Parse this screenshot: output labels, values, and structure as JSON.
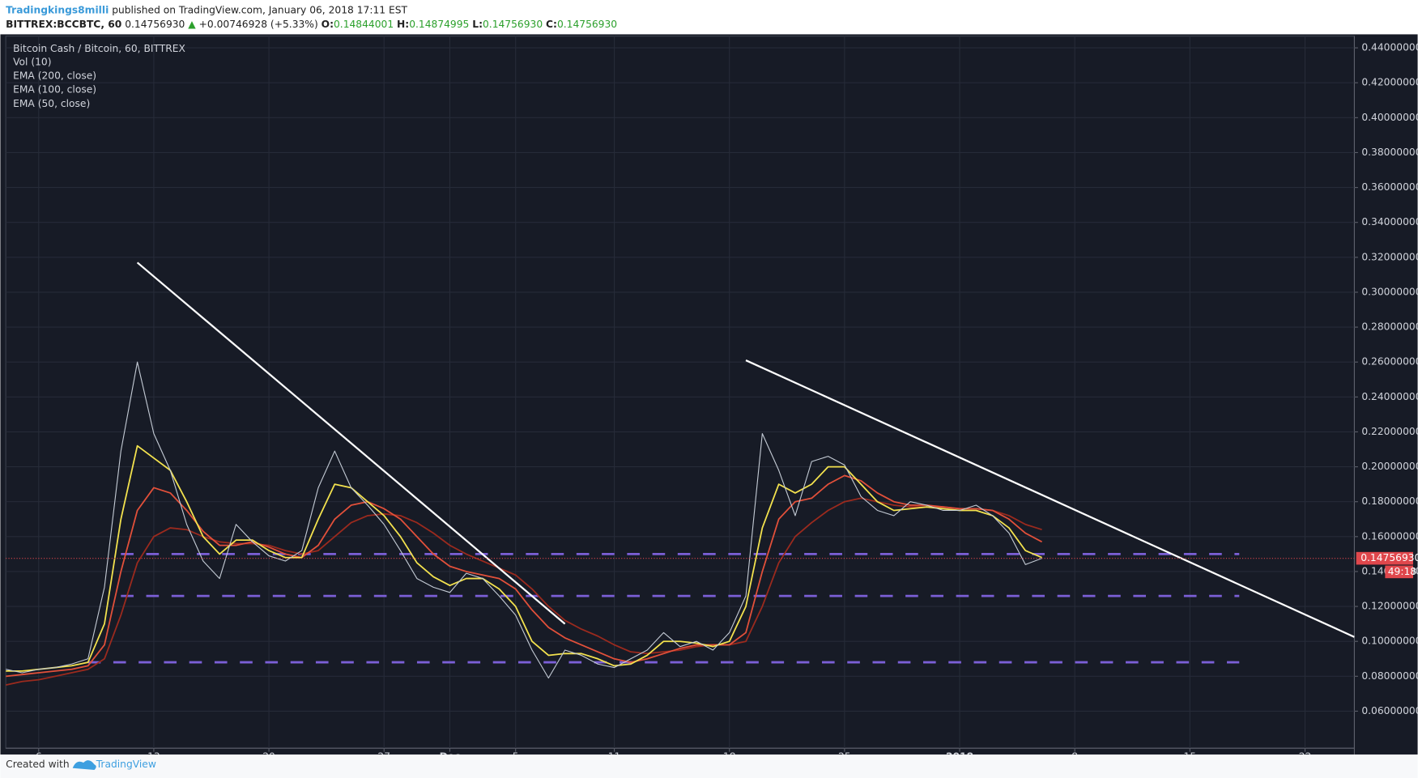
{
  "header": {
    "author": "Tradingkings8milli",
    "published": "published on TradingView.com, January 06, 2018 17:11 EST",
    "symbol": "BITTREX:BCCBTC, 60",
    "price": "0.14756930",
    "arrow": "▲",
    "change": "+0.00746928 (+5.33%)",
    "open_label": "O:",
    "open": "0.14844001",
    "high_label": "H:",
    "high": "0.14874995",
    "low_label": "L:",
    "low": "0.14756930",
    "close_label": "C:",
    "close": "0.14756930"
  },
  "chart_data": {
    "type": "line",
    "title": "Bitcoin Cash / Bitcoin, 60, BITTREX",
    "volume_label": "Vol (10)",
    "x": [
      "2017-11-04",
      "2017-11-05",
      "2017-11-06",
      "2017-11-07",
      "2017-11-08",
      "2017-11-09",
      "2017-11-10",
      "2017-11-11",
      "2017-11-12",
      "2017-11-13",
      "2017-11-14",
      "2017-11-15",
      "2017-11-16",
      "2017-11-17",
      "2017-11-18",
      "2017-11-19",
      "2017-11-20",
      "2017-11-21",
      "2017-11-22",
      "2017-11-23",
      "2017-11-24",
      "2017-11-25",
      "2017-11-26",
      "2017-11-27",
      "2017-11-28",
      "2017-11-29",
      "2017-11-30",
      "2017-12-01",
      "2017-12-02",
      "2017-12-03",
      "2017-12-04",
      "2017-12-05",
      "2017-12-06",
      "2017-12-07",
      "2017-12-08",
      "2017-12-09",
      "2017-12-10",
      "2017-12-11",
      "2017-12-12",
      "2017-12-13",
      "2017-12-14",
      "2017-12-15",
      "2017-12-16",
      "2017-12-17",
      "2017-12-18",
      "2017-12-19",
      "2017-12-20",
      "2017-12-21",
      "2017-12-22",
      "2017-12-23",
      "2017-12-24",
      "2017-12-25",
      "2017-12-26",
      "2017-12-27",
      "2017-12-28",
      "2017-12-29",
      "2017-12-30",
      "2017-12-31",
      "2018-01-01",
      "2018-01-02",
      "2018-01-03",
      "2018-01-04",
      "2018-01-05",
      "2018-01-06"
    ],
    "values": [
      0.084,
      0.082,
      0.084,
      0.085,
      0.087,
      0.09,
      0.131,
      0.209,
      0.26,
      0.219,
      0.198,
      0.167,
      0.146,
      0.136,
      0.167,
      0.157,
      0.149,
      0.146,
      0.152,
      0.188,
      0.209,
      0.188,
      0.178,
      0.167,
      0.152,
      0.136,
      0.131,
      0.128,
      0.139,
      0.136,
      0.126,
      0.115,
      0.095,
      0.079,
      0.095,
      0.092,
      0.087,
      0.085,
      0.09,
      0.095,
      0.105,
      0.097,
      0.1,
      0.095,
      0.105,
      0.126,
      0.219,
      0.198,
      0.172,
      0.203,
      0.206,
      0.201,
      0.183,
      0.175,
      0.172,
      0.18,
      0.178,
      0.175,
      0.175,
      0.178,
      0.172,
      0.162,
      0.144,
      0.1475693
    ],
    "color": "#c3cad4",
    "series": [
      {
        "name": "EMA (200, close)",
        "color": "#9b2a1e",
        "values": [
          0.075,
          0.077,
          0.078,
          0.08,
          0.082,
          0.084,
          0.09,
          0.115,
          0.145,
          0.16,
          0.165,
          0.164,
          0.16,
          0.157,
          0.156,
          0.156,
          0.155,
          0.152,
          0.15,
          0.152,
          0.16,
          0.168,
          0.172,
          0.173,
          0.172,
          0.168,
          0.162,
          0.155,
          0.15,
          0.146,
          0.142,
          0.138,
          0.13,
          0.12,
          0.112,
          0.107,
          0.103,
          0.098,
          0.094,
          0.093,
          0.094,
          0.095,
          0.097,
          0.098,
          0.098,
          0.1,
          0.12,
          0.145,
          0.16,
          0.168,
          0.175,
          0.18,
          0.182,
          0.18,
          0.178,
          0.177,
          0.177,
          0.177,
          0.176,
          0.176,
          0.175,
          0.172,
          0.167,
          0.164
        ]
      },
      {
        "name": "EMA (100, close)",
        "color": "#e2503a",
        "values": [
          0.08,
          0.081,
          0.082,
          0.083,
          0.084,
          0.086,
          0.098,
          0.14,
          0.175,
          0.188,
          0.185,
          0.175,
          0.163,
          0.155,
          0.155,
          0.157,
          0.154,
          0.15,
          0.148,
          0.155,
          0.17,
          0.178,
          0.18,
          0.176,
          0.17,
          0.16,
          0.15,
          0.143,
          0.14,
          0.138,
          0.136,
          0.13,
          0.118,
          0.108,
          0.102,
          0.098,
          0.094,
          0.09,
          0.088,
          0.09,
          0.093,
          0.096,
          0.098,
          0.098,
          0.098,
          0.105,
          0.14,
          0.17,
          0.18,
          0.182,
          0.19,
          0.195,
          0.192,
          0.185,
          0.18,
          0.178,
          0.178,
          0.177,
          0.176,
          0.176,
          0.175,
          0.17,
          0.162,
          0.157
        ]
      },
      {
        "name": "EMA (50, close)",
        "color": "#f3e24e",
        "values": [
          0.083,
          0.083,
          0.084,
          0.085,
          0.086,
          0.088,
          0.11,
          0.17,
          0.212,
          0.205,
          0.198,
          0.18,
          0.16,
          0.15,
          0.158,
          0.158,
          0.152,
          0.148,
          0.148,
          0.17,
          0.19,
          0.188,
          0.18,
          0.172,
          0.16,
          0.145,
          0.137,
          0.132,
          0.136,
          0.136,
          0.13,
          0.12,
          0.1,
          0.092,
          0.093,
          0.093,
          0.09,
          0.086,
          0.087,
          0.092,
          0.1,
          0.1,
          0.099,
          0.097,
          0.1,
          0.12,
          0.165,
          0.19,
          0.185,
          0.19,
          0.2,
          0.2,
          0.19,
          0.18,
          0.175,
          0.176,
          0.177,
          0.176,
          0.175,
          0.175,
          0.172,
          0.165,
          0.152,
          0.148
        ]
      }
    ],
    "levels": [
      {
        "value": 0.15,
        "from": "2017-11-11",
        "to": "2018-01-18",
        "color": "#7b5fd6"
      },
      {
        "value": 0.126,
        "from": "2017-11-11",
        "to": "2018-01-18",
        "color": "#7b5fd6"
      },
      {
        "value": 0.088,
        "from": "2017-11-09",
        "to": "2018-01-18",
        "color": "#7b5fd6"
      }
    ],
    "trendlines": [
      {
        "from": [
          "2017-11-12",
          0.317
        ],
        "to": [
          "2017-12-08",
          0.11
        ],
        "color": "#ffffff"
      },
      {
        "from": [
          "2017-12-19",
          0.261
        ],
        "to": [
          "2018-01-25",
          0.1025
        ],
        "color": "#ffffff"
      }
    ],
    "last_price": {
      "value": 0.1475693,
      "label": "0.14756930"
    },
    "countdown": "49:18",
    "xlim": [
      "2017-11-04",
      "2018-01-25"
    ],
    "xticks": [
      {
        "value": "2017-11-06",
        "label": "6"
      },
      {
        "value": "2017-11-13",
        "label": "13"
      },
      {
        "value": "2017-11-20",
        "label": "20"
      },
      {
        "value": "2017-11-27",
        "label": "27"
      },
      {
        "value": "2017-12-01",
        "label": "Dec"
      },
      {
        "value": "2017-12-05",
        "label": "5"
      },
      {
        "value": "2017-12-11",
        "label": "11"
      },
      {
        "value": "2017-12-18",
        "label": "18"
      },
      {
        "value": "2017-12-25",
        "label": "25"
      },
      {
        "value": "2018-01-01",
        "label": "2018"
      },
      {
        "value": "2018-01-08",
        "label": "8"
      },
      {
        "value": "2018-01-15",
        "label": "15"
      },
      {
        "value": "2018-01-22",
        "label": "22"
      }
    ],
    "ylim": [
      0.0388,
      0.4467
    ],
    "yticks": [
      {
        "value": 0.06,
        "label": "0.06000000"
      },
      {
        "value": 0.08,
        "label": "0.08000000"
      },
      {
        "value": 0.1,
        "label": "0.10000000"
      },
      {
        "value": 0.12,
        "label": "0.12000000"
      },
      {
        "value": 0.14,
        "label": "0.14000000"
      },
      {
        "value": 0.16,
        "label": "0.16000000"
      },
      {
        "value": 0.18,
        "label": "0.18000000"
      },
      {
        "value": 0.2,
        "label": "0.20000000"
      },
      {
        "value": 0.22,
        "label": "0.22000000"
      },
      {
        "value": 0.24,
        "label": "0.24000000"
      },
      {
        "value": 0.26,
        "label": "0.26000000"
      },
      {
        "value": 0.28,
        "label": "0.28000000"
      },
      {
        "value": 0.3,
        "label": "0.30000000"
      },
      {
        "value": 0.32,
        "label": "0.32000000"
      },
      {
        "value": 0.34,
        "label": "0.34000000"
      },
      {
        "value": 0.36,
        "label": "0.36000000"
      },
      {
        "value": 0.38,
        "label": "0.38000000"
      },
      {
        "value": 0.4,
        "label": "0.40000000"
      },
      {
        "value": 0.42,
        "label": "0.42000000"
      },
      {
        "value": 0.44,
        "label": "0.44000000"
      }
    ],
    "grid": true
  },
  "footer": {
    "created": "Created with",
    "brand": "TradingView"
  }
}
